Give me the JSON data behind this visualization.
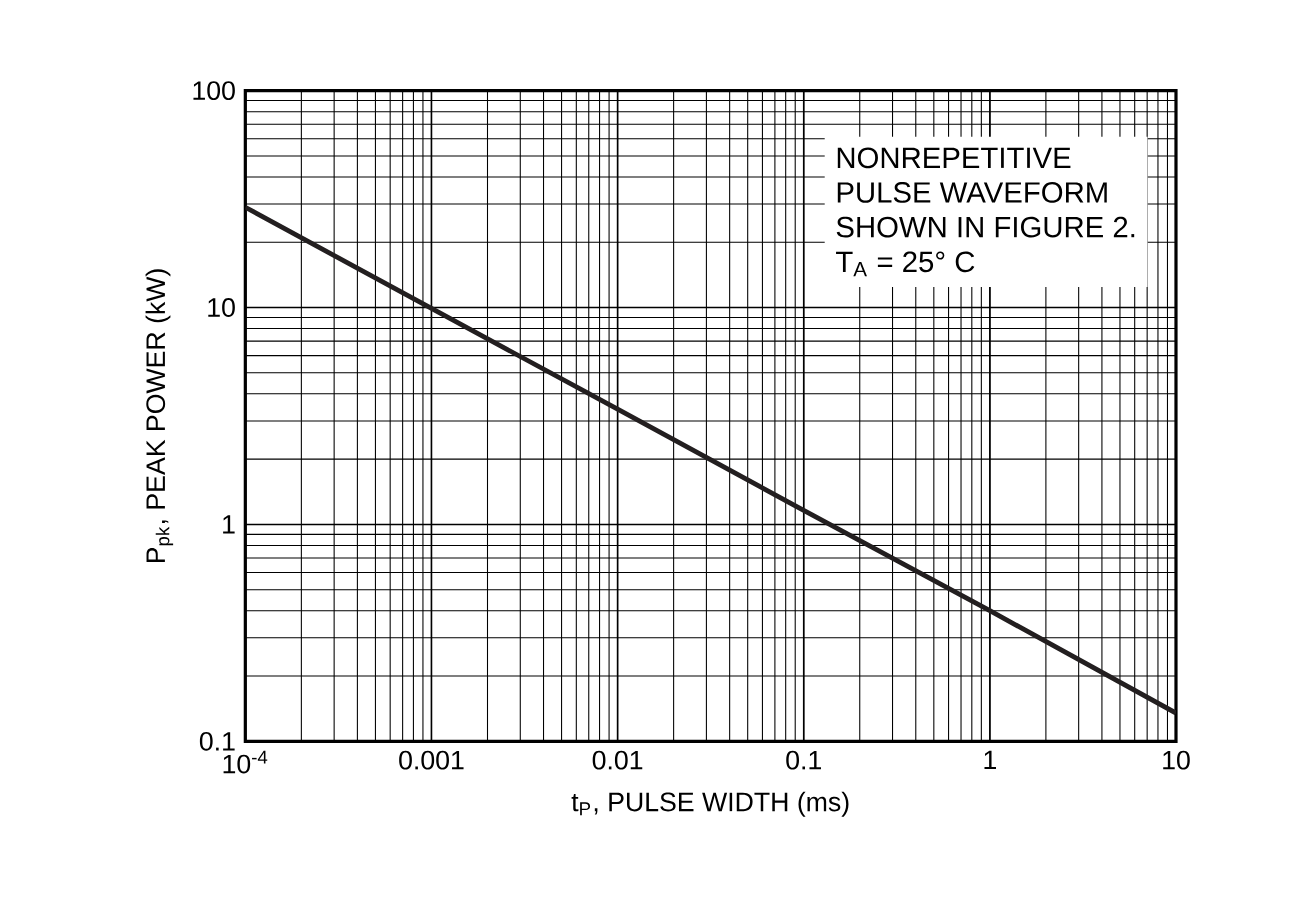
{
  "chart_data": {
    "type": "line",
    "xlabel": "t$_{P}$, PULSE WIDTH (ms)",
    "ylabel": "P$_{pk}$, PEAK POWER (kW)",
    "annotations": [
      "NONREPETITIVE",
      "PULSE WAVEFORM",
      "SHOWN IN FIGURE 2.",
      "T$_{A}$ = 25° C"
    ],
    "x": [
      0.0001,
      0.001,
      0.01,
      0.1,
      1,
      10
    ],
    "series": [
      {
        "color": "#231f20",
        "values": [
          29,
          9.9,
          3.4,
          1.16,
          0.4,
          0.135
        ]
      }
    ],
    "log": "xy",
    "xlim": [
      0.0001,
      10
    ],
    "ylim": [
      0.1,
      100
    ],
    "xticks": [
      {
        "value": 0.0001,
        "label": "10$^{-4}$"
      },
      0.001,
      0.01,
      0.1,
      1,
      10
    ],
    "yticks": [
      0.1,
      1,
      10,
      100
    ],
    "grid": true,
    "line_style": "solid",
    "marker": "none"
  }
}
